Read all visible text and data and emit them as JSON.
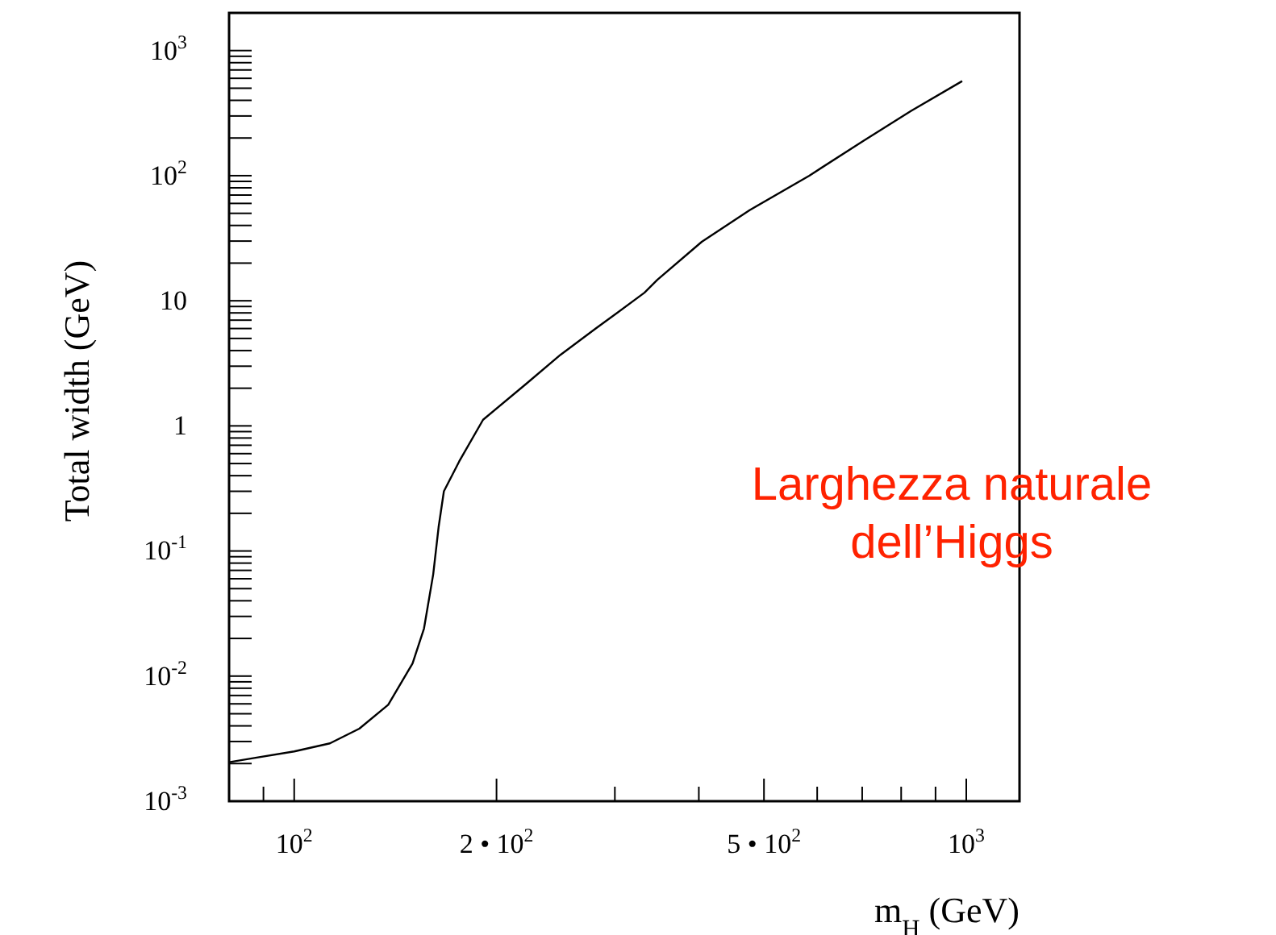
{
  "chart_data": {
    "type": "line",
    "xlabel": "m$_{H}$ (GeV)",
    "ylabel": "Total width (GeV)",
    "log": "xy",
    "grid": false,
    "marker": "none",
    "line_style": "solid",
    "xlim": [
      80,
      1200
    ],
    "ylim": [
      0.001,
      2000
    ],
    "xticks": [
      {
        "value": 90,
        "label": null
      },
      {
        "value": 100,
        "label": "10$^{2}$"
      },
      {
        "value": 200,
        "label": "2 • 10$^{2}$"
      },
      {
        "value": 300,
        "label": null
      },
      {
        "value": 400,
        "label": null
      },
      {
        "value": 500,
        "label": "5 • 10$^{2}$"
      },
      {
        "value": 600,
        "label": null
      },
      {
        "value": 700,
        "label": null
      },
      {
        "value": 800,
        "label": null
      },
      {
        "value": 900,
        "label": null
      },
      {
        "value": 1000,
        "label": "10$^{3}$"
      }
    ],
    "yticks": [
      {
        "value": 0.001,
        "label": "10$^{-3}$"
      },
      {
        "value": 0.002,
        "label": null
      },
      {
        "value": 0.003,
        "label": null
      },
      {
        "value": 0.004,
        "label": null
      },
      {
        "value": 0.005,
        "label": null
      },
      {
        "value": 0.006,
        "label": null
      },
      {
        "value": 0.007,
        "label": null
      },
      {
        "value": 0.008,
        "label": null
      },
      {
        "value": 0.009,
        "label": null
      },
      {
        "value": 0.01,
        "label": "10$^{-2}$"
      },
      {
        "value": 0.02,
        "label": null
      },
      {
        "value": 0.03,
        "label": null
      },
      {
        "value": 0.04,
        "label": null
      },
      {
        "value": 0.05,
        "label": null
      },
      {
        "value": 0.06,
        "label": null
      },
      {
        "value": 0.07,
        "label": null
      },
      {
        "value": 0.08,
        "label": null
      },
      {
        "value": 0.09,
        "label": null
      },
      {
        "value": 0.1,
        "label": "10$^{-1}$"
      },
      {
        "value": 0.2,
        "label": null
      },
      {
        "value": 0.3,
        "label": null
      },
      {
        "value": 0.4,
        "label": null
      },
      {
        "value": 0.5,
        "label": null
      },
      {
        "value": 0.6,
        "label": null
      },
      {
        "value": 0.7,
        "label": null
      },
      {
        "value": 0.8,
        "label": null
      },
      {
        "value": 0.9,
        "label": null
      },
      {
        "value": 1,
        "label": "1"
      },
      {
        "value": 2,
        "label": null
      },
      {
        "value": 3,
        "label": null
      },
      {
        "value": 4,
        "label": null
      },
      {
        "value": 5,
        "label": null
      },
      {
        "value": 6,
        "label": null
      },
      {
        "value": 7,
        "label": null
      },
      {
        "value": 8,
        "label": null
      },
      {
        "value": 9,
        "label": null
      },
      {
        "value": 10,
        "label": "10"
      },
      {
        "value": 20,
        "label": null
      },
      {
        "value": 30,
        "label": null
      },
      {
        "value": 40,
        "label": null
      },
      {
        "value": 50,
        "label": null
      },
      {
        "value": 60,
        "label": null
      },
      {
        "value": 70,
        "label": null
      },
      {
        "value": 80,
        "label": null
      },
      {
        "value": 90,
        "label": null
      },
      {
        "value": 100,
        "label": "10$^{2}$"
      },
      {
        "value": 200,
        "label": null
      },
      {
        "value": 300,
        "label": null
      },
      {
        "value": 400,
        "label": null
      },
      {
        "value": 500,
        "label": null
      },
      {
        "value": 600,
        "label": null
      },
      {
        "value": 700,
        "label": null
      },
      {
        "value": 800,
        "label": null
      },
      {
        "value": 900,
        "label": null
      },
      {
        "value": 1000,
        "label": "10$^{3}$"
      }
    ],
    "x": [
      80,
      86.5,
      100,
      113,
      125,
      138,
      150,
      156,
      161,
      164,
      167,
      176,
      191,
      221,
      249,
      281,
      332,
      347,
      404,
      476,
      584,
      703,
      828,
      986
    ],
    "series": [
      {
        "color": "#000000",
        "values": [
          0.00205,
          0.0022,
          0.0025,
          0.0029,
          0.0038,
          0.0059,
          0.0126,
          0.024,
          0.065,
          0.155,
          0.3,
          0.52,
          1.12,
          2.15,
          3.7,
          6.0,
          11.6,
          14.7,
          29.6,
          53,
          100,
          190,
          330,
          570
        ]
      }
    ],
    "annotations": [
      "Larghezza naturale\ndell’Higgs"
    ]
  }
}
